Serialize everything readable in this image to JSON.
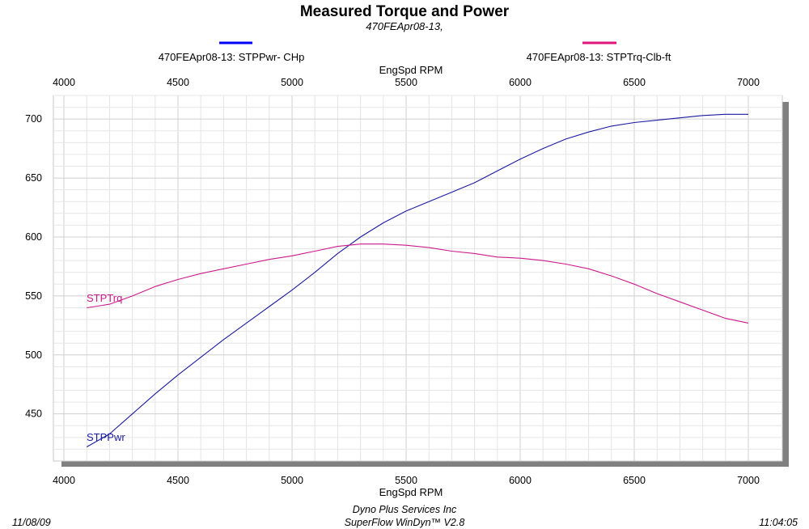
{
  "chart_data": {
    "type": "line",
    "title": "Measured Torque and Power",
    "subtitle": "470FEApr08-13,",
    "xlabel_top": "EngSpd  RPM",
    "xlabel_bottom": "EngSpd  RPM",
    "xlim": [
      4000,
      7000
    ],
    "ylim": [
      410,
      720
    ],
    "x_ticks": [
      4000,
      4500,
      5000,
      5500,
      6000,
      6500,
      7000
    ],
    "y_ticks": [
      450,
      500,
      550,
      600,
      650,
      700
    ],
    "grid": true,
    "legend_placement": "top",
    "series": [
      {
        "name": "470FEApr08-13: STPPwr- CHp",
        "label": "STPPwr",
        "color": "#1a1aa0",
        "legend_color": "#0000ff",
        "x": [
          4100,
          4200,
          4300,
          4400,
          4500,
          4600,
          4700,
          4800,
          4900,
          5000,
          5100,
          5200,
          5300,
          5400,
          5500,
          5600,
          5700,
          5800,
          5900,
          6000,
          6100,
          6200,
          6300,
          6400,
          6500,
          6600,
          6700,
          6800,
          6900,
          7000
        ],
        "values": [
          422,
          433,
          450,
          467,
          483,
          498,
          513,
          527,
          541,
          555,
          570,
          586,
          600,
          612,
          622,
          630,
          638,
          646,
          656,
          666,
          675,
          683,
          689,
          694,
          697,
          699,
          701,
          703,
          704,
          704
        ]
      },
      {
        "name": "470FEApr08-13: STPTrq-Clb-ft",
        "label": "STPTrq",
        "color": "#cc1a8c",
        "legend_color": "#e0147a",
        "x": [
          4100,
          4200,
          4300,
          4400,
          4500,
          4600,
          4700,
          4800,
          4900,
          5000,
          5100,
          5200,
          5300,
          5400,
          5500,
          5600,
          5700,
          5800,
          5900,
          6000,
          6100,
          6200,
          6300,
          6400,
          6500,
          6600,
          6700,
          6800,
          6900,
          7000
        ],
        "values": [
          540,
          543,
          550,
          558,
          564,
          569,
          573,
          577,
          581,
          584,
          588,
          592,
          594,
          594,
          593,
          591,
          588,
          586,
          583,
          582,
          580,
          577,
          573,
          567,
          560,
          552,
          545,
          538,
          531,
          527
        ]
      }
    ]
  },
  "footer": {
    "date": "11/08/09",
    "company": "Dyno Plus Services Inc",
    "software": "SuperFlow WinDyn™ V2.8",
    "time": "11:04:05"
  }
}
